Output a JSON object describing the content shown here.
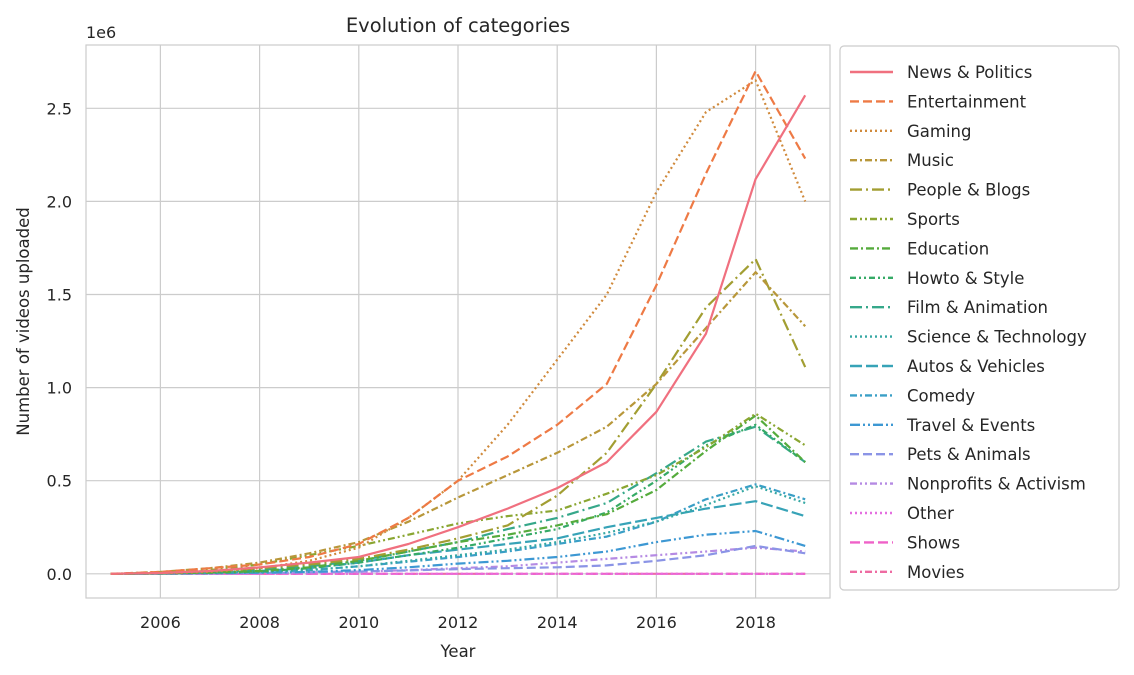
{
  "chart_data": {
    "type": "line",
    "title": "Evolution of categories",
    "xlabel": "Year",
    "ylabel": "Number of videos uploaded",
    "y_offset_label": "1e6",
    "xlim": [
      2004.5,
      2019.5
    ],
    "ylim": [
      -0.13,
      2.84
    ],
    "x_ticks": [
      2006,
      2008,
      2010,
      2012,
      2014,
      2016,
      2018
    ],
    "x_tick_labels": [
      "2006",
      "2008",
      "2010",
      "2012",
      "2014",
      "2016",
      "2018"
    ],
    "y_ticks": [
      0,
      0.5,
      1.0,
      1.5,
      2.0,
      2.5
    ],
    "y_tick_labels": [
      "0.0",
      "0.5",
      "1.0",
      "1.5",
      "2.0",
      "2.5"
    ],
    "grid": true,
    "legend_position": "right",
    "x": [
      2005,
      2006,
      2007,
      2008,
      2009,
      2010,
      2011,
      2012,
      2013,
      2014,
      2015,
      2016,
      2017,
      2018,
      2019
    ],
    "series": [
      {
        "name": "News & Politics",
        "color": "#f0707f",
        "dash": "",
        "values": [
          0,
          0.004,
          0.015,
          0.035,
          0.06,
          0.09,
          0.16,
          0.25,
          0.35,
          0.46,
          0.6,
          0.87,
          1.29,
          2.12,
          2.57
        ]
      },
      {
        "name": "Entertainment",
        "color": "#ee7a45",
        "dash": "9,4",
        "values": [
          0,
          0.01,
          0.03,
          0.05,
          0.09,
          0.16,
          0.3,
          0.5,
          0.63,
          0.8,
          1.02,
          1.55,
          2.15,
          2.7,
          2.23
        ]
      },
      {
        "name": "Gaming",
        "color": "#d08a3c",
        "dash": "2,3",
        "values": [
          0,
          0.003,
          0.01,
          0.03,
          0.07,
          0.14,
          0.3,
          0.5,
          0.8,
          1.15,
          1.5,
          2.05,
          2.48,
          2.65,
          2.0
        ]
      },
      {
        "name": "Music",
        "color": "#b8973a",
        "dash": "7,3,2,3",
        "values": [
          0,
          0.01,
          0.03,
          0.06,
          0.11,
          0.17,
          0.28,
          0.41,
          0.53,
          0.65,
          0.79,
          1.02,
          1.32,
          1.62,
          1.33
        ]
      },
      {
        "name": "People & Blogs",
        "color": "#a29e32",
        "dash": "12,4,2,4",
        "values": [
          0,
          0.005,
          0.015,
          0.03,
          0.05,
          0.08,
          0.13,
          0.19,
          0.26,
          0.42,
          0.65,
          1.02,
          1.43,
          1.69,
          1.11
        ]
      },
      {
        "name": "Sports",
        "color": "#8aa632",
        "dash": "7,3,2,3,2,3",
        "values": [
          0,
          0.005,
          0.02,
          0.05,
          0.1,
          0.15,
          0.21,
          0.27,
          0.31,
          0.34,
          0.43,
          0.53,
          0.68,
          0.86,
          0.69
        ]
      },
      {
        "name": "Education",
        "color": "#55ab3c",
        "dash": "8,3,2,3",
        "values": [
          0,
          0.002,
          0.007,
          0.015,
          0.035,
          0.07,
          0.12,
          0.17,
          0.21,
          0.26,
          0.32,
          0.45,
          0.66,
          0.85,
          0.6
        ]
      },
      {
        "name": "Howto & Style",
        "color": "#35aa66",
        "dash": "6,3,2,3,2,3",
        "values": [
          0,
          0.002,
          0.006,
          0.012,
          0.03,
          0.06,
          0.1,
          0.14,
          0.19,
          0.24,
          0.33,
          0.5,
          0.69,
          0.8,
          0.6
        ]
      },
      {
        "name": "Film & Animation",
        "color": "#36a88a",
        "dash": "12,4,2,4",
        "values": [
          0,
          0.003,
          0.008,
          0.02,
          0.04,
          0.07,
          0.12,
          0.17,
          0.24,
          0.3,
          0.38,
          0.54,
          0.71,
          0.79,
          0.6
        ]
      },
      {
        "name": "Science & Technology",
        "color": "#36a8a4",
        "dash": "2,3",
        "values": [
          0,
          0.002,
          0.005,
          0.01,
          0.02,
          0.04,
          0.07,
          0.1,
          0.13,
          0.17,
          0.22,
          0.28,
          0.37,
          0.47,
          0.38
        ]
      },
      {
        "name": "Autos & Vehicles",
        "color": "#37a3b7",
        "dash": "12,4",
        "values": [
          0,
          0.002,
          0.006,
          0.015,
          0.03,
          0.06,
          0.1,
          0.13,
          0.16,
          0.19,
          0.25,
          0.3,
          0.35,
          0.39,
          0.31
        ]
      },
      {
        "name": "Comedy",
        "color": "#3a9fc6",
        "dash": "7,3,2,3",
        "values": [
          0,
          0.001,
          0.004,
          0.01,
          0.02,
          0.04,
          0.065,
          0.09,
          0.12,
          0.16,
          0.2,
          0.28,
          0.4,
          0.48,
          0.4
        ]
      },
      {
        "name": "Travel & Events",
        "color": "#3d98d3",
        "dash": "10,3,2,3,2,3",
        "values": [
          0,
          0.001,
          0.003,
          0.006,
          0.01,
          0.02,
          0.035,
          0.055,
          0.07,
          0.09,
          0.12,
          0.17,
          0.21,
          0.23,
          0.15
        ]
      },
      {
        "name": "Pets & Animals",
        "color": "#8b94e6",
        "dash": "9,4",
        "values": [
          0,
          0.001,
          0.002,
          0.004,
          0.008,
          0.012,
          0.018,
          0.025,
          0.03,
          0.035,
          0.045,
          0.07,
          0.1,
          0.15,
          0.11
        ]
      },
      {
        "name": "Nonprofits & Activism",
        "color": "#b58ae3",
        "dash": "7,3,2,3,2,3",
        "values": [
          0,
          0.001,
          0.002,
          0.004,
          0.008,
          0.012,
          0.02,
          0.03,
          0.04,
          0.06,
          0.08,
          0.1,
          0.12,
          0.14,
          0.12
        ]
      },
      {
        "name": "Other",
        "color": "#e46fe0",
        "dash": "2,3",
        "values": [
          0,
          0,
          0,
          0,
          0,
          0,
          0,
          0,
          0,
          0,
          0,
          0,
          0,
          0,
          0
        ]
      },
      {
        "name": "Shows",
        "color": "#ef61c8",
        "dash": "10,4",
        "values": [
          0,
          0,
          0,
          0,
          0,
          0,
          0,
          0,
          0,
          0,
          0,
          0,
          0,
          0,
          0
        ]
      },
      {
        "name": "Movies",
        "color": "#ee6ba2",
        "dash": "7,3,2,3",
        "values": [
          0,
          0,
          0,
          0,
          0,
          0,
          0,
          0,
          0,
          0,
          0,
          0,
          0,
          0,
          0
        ]
      }
    ]
  }
}
